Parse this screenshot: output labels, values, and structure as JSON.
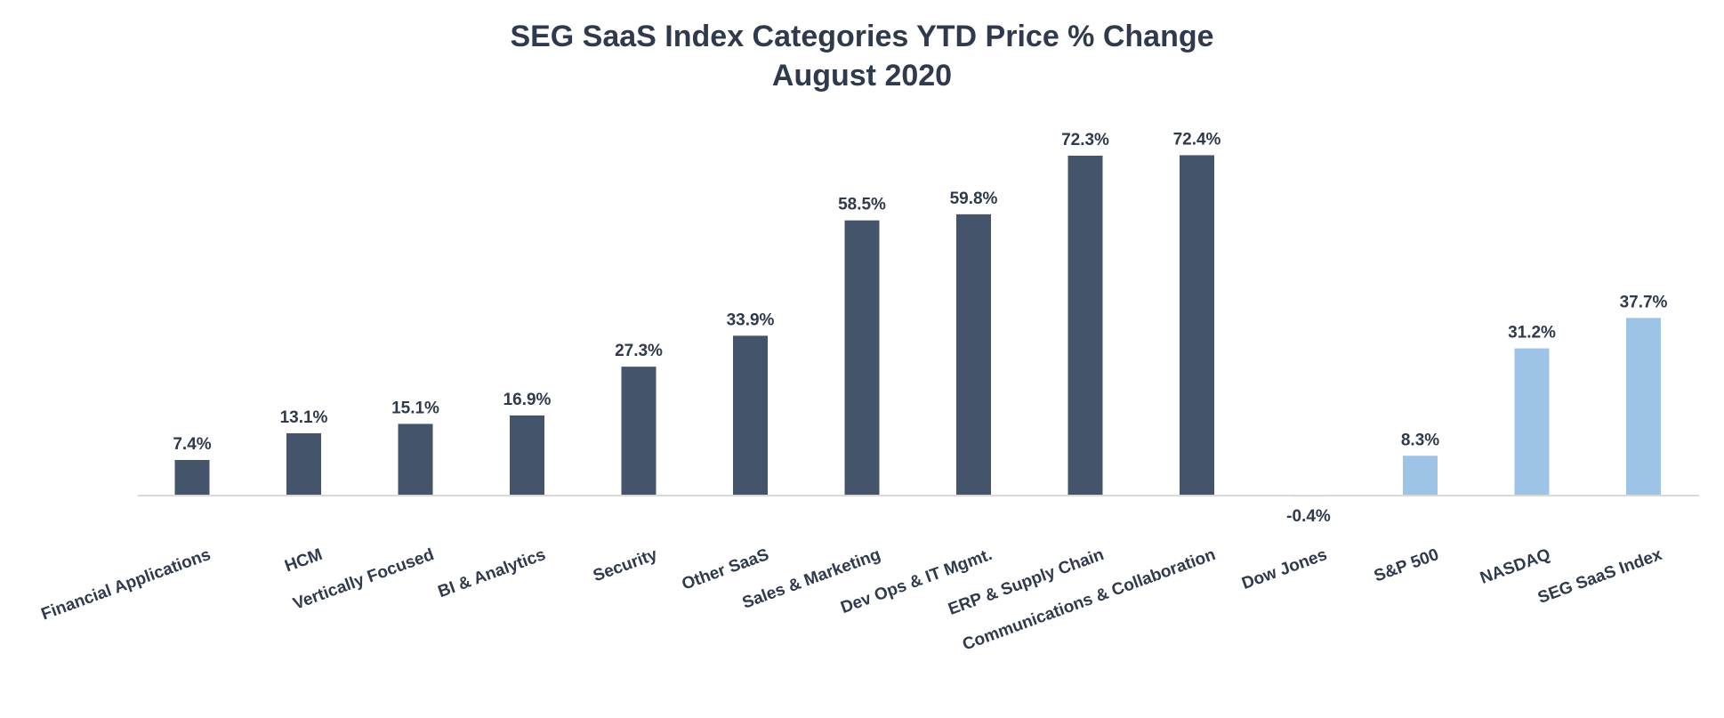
{
  "chart_data": {
    "type": "bar",
    "title": "SEG SaaS Index Categories YTD Price % Change",
    "subtitle": "August 2020",
    "xlabel": "",
    "ylabel": "",
    "ylim": [
      -5,
      75
    ],
    "grid": false,
    "legend": "none",
    "value_suffix": "%",
    "categories": [
      "Financial Applications",
      "HCM",
      "Vertically Focused",
      "BI & Analytics",
      "Security",
      "Other SaaS",
      "Sales & Marketing",
      "Dev Ops & IT Mgmt.",
      "ERP & Supply Chain",
      "Communications & Collaboration",
      "Dow Jones",
      "S&P 500",
      "NASDAQ",
      "SEG SaaS Index"
    ],
    "values": [
      7.4,
      13.1,
      15.1,
      16.9,
      27.3,
      33.9,
      58.5,
      59.8,
      72.3,
      72.4,
      -0.4,
      8.3,
      31.2,
      37.7
    ],
    "data_labels": [
      "7.4%",
      "13.1%",
      "15.1%",
      "16.9%",
      "27.3%",
      "33.9%",
      "58.5%",
      "59.8%",
      "72.3%",
      "72.4%",
      "-0.4%",
      "8.3%",
      "31.2%",
      "37.7%"
    ],
    "groups": [
      "category",
      "category",
      "category",
      "category",
      "category",
      "category",
      "category",
      "category",
      "category",
      "category",
      "benchmark",
      "benchmark",
      "benchmark",
      "benchmark"
    ],
    "colors": {
      "category": "#44546a",
      "benchmark": "#9dc3e6",
      "axis": "#d9d9d9",
      "text": "#2f3a4c"
    }
  }
}
